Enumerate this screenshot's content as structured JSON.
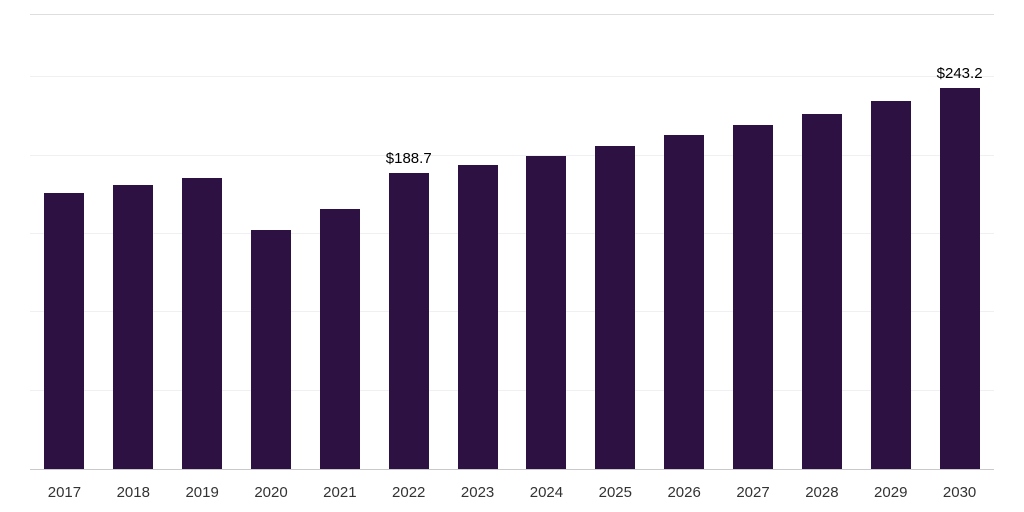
{
  "chart_data": {
    "type": "bar",
    "title": "",
    "xlabel": "",
    "ylabel": "",
    "categories": [
      "2017",
      "2018",
      "2019",
      "2020",
      "2021",
      "2022",
      "2023",
      "2024",
      "2025",
      "2026",
      "2027",
      "2028",
      "2029",
      "2030"
    ],
    "values": [
      176.1,
      181.3,
      185.8,
      152.5,
      165.9,
      188.7,
      194.0,
      199.8,
      206.1,
      213.1,
      219.5,
      226.5,
      234.9,
      243.2
    ],
    "data_labels": [
      "",
      "",
      "",
      "",
      "",
      "$188.7",
      "",
      "",
      "",
      "",
      "",
      "",
      "",
      "$243.2"
    ],
    "ylim": [
      0,
      291
    ],
    "gridline_values": [
      50,
      100,
      150,
      200,
      250
    ],
    "grid": true,
    "legend_position": "none",
    "bar_color": "#2d1142",
    "gridline_color": "#f0f0f2",
    "axis_label_color": "#333333"
  }
}
